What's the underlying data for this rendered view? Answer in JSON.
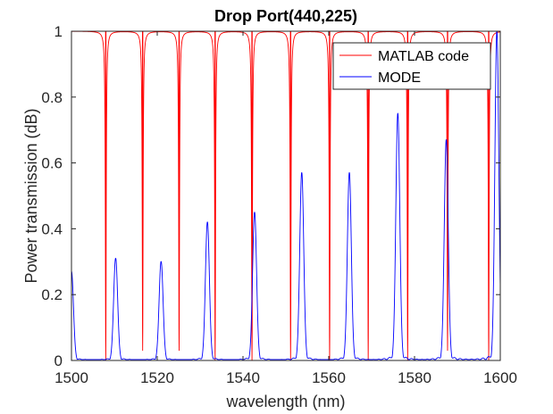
{
  "chart_data": {
    "type": "line",
    "title": "Drop Port(440,225)",
    "xlabel": "wavelength (nm)",
    "ylabel": "Power transmission (dB)",
    "xlim": [
      1500,
      1600
    ],
    "ylim": [
      0,
      1
    ],
    "xticks": [
      1500,
      1520,
      1540,
      1560,
      1580,
      1600
    ],
    "yticks": [
      0,
      0.2,
      0.4,
      0.6,
      0.8,
      1
    ],
    "grid": false,
    "legend_position": "top-right",
    "series": [
      {
        "name": "MATLAB code",
        "color": "#ff0000",
        "baseline": 1,
        "dips": [
          {
            "x": 1508.0,
            "min": 0.0
          },
          {
            "x": 1516.6,
            "min": 0.03
          },
          {
            "x": 1525.1,
            "min": 0.03
          },
          {
            "x": 1533.5,
            "min": 0.0
          },
          {
            "x": 1542.1,
            "min": 0.0
          },
          {
            "x": 1551.1,
            "min": 0.0
          },
          {
            "x": 1560.2,
            "min": 0.0
          },
          {
            "x": 1569.2,
            "min": 0.0
          },
          {
            "x": 1578.4,
            "min": 0.0
          },
          {
            "x": 1587.7,
            "min": 0.03
          },
          {
            "x": 1597.3,
            "min": 0.0
          }
        ]
      },
      {
        "name": "MODE",
        "color": "#0000ff",
        "peaks": [
          {
            "x": 1500.0,
            "y": 0.27
          },
          {
            "x": 1510.3,
            "y": 0.31
          },
          {
            "x": 1520.9,
            "y": 0.3
          },
          {
            "x": 1531.7,
            "y": 0.42
          },
          {
            "x": 1542.7,
            "y": 0.45
          },
          {
            "x": 1553.7,
            "y": 0.57
          },
          {
            "x": 1564.8,
            "y": 0.57
          },
          {
            "x": 1576.1,
            "y": 0.75
          },
          {
            "x": 1587.4,
            "y": 0.67
          },
          {
            "x": 1599.2,
            "y": 1.0
          }
        ]
      }
    ]
  }
}
